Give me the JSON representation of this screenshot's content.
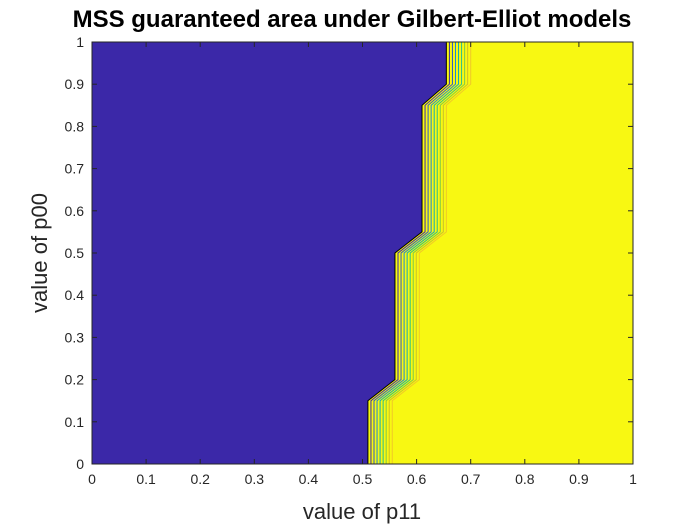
{
  "chart_data": {
    "type": "contour",
    "title": "MSS guaranteed area under Gilbert-Elliot models",
    "xlabel": "value of p11",
    "ylabel": "value of p00",
    "xlim": [
      0,
      1
    ],
    "ylim": [
      0,
      1
    ],
    "xticks": [
      "0",
      "0.1",
      "0.2",
      "0.3",
      "0.4",
      "0.5",
      "0.6",
      "0.7",
      "0.8",
      "0.9",
      "1"
    ],
    "yticks": [
      "0",
      "0.1",
      "0.2",
      "0.3",
      "0.4",
      "0.5",
      "0.6",
      "0.7",
      "0.8",
      "0.9",
      "1"
    ],
    "grid": false,
    "colors": {
      "low_region": "#3b28a8",
      "high_region": "#f8f812",
      "contour_lines": [
        "#000000",
        "#3b28a8",
        "#2d56c8",
        "#1a86d6",
        "#10aab6",
        "#2abf8a",
        "#7ec84a",
        "#c8c02c",
        "#f0c828"
      ]
    },
    "boundary_inner": [
      [
        0.51,
        0
      ],
      [
        0.51,
        0.15
      ],
      [
        0.56,
        0.2
      ],
      [
        0.56,
        0.5
      ],
      [
        0.61,
        0.55
      ],
      [
        0.61,
        0.85
      ],
      [
        0.655,
        0.9
      ],
      [
        0.655,
        1.0
      ]
    ],
    "boundary_outer": [
      [
        0.555,
        0
      ],
      [
        0.555,
        0.15
      ],
      [
        0.605,
        0.2
      ],
      [
        0.605,
        0.5
      ],
      [
        0.655,
        0.55
      ],
      [
        0.655,
        0.85
      ],
      [
        0.7,
        0.9
      ],
      [
        0.7,
        1.0
      ]
    ]
  }
}
